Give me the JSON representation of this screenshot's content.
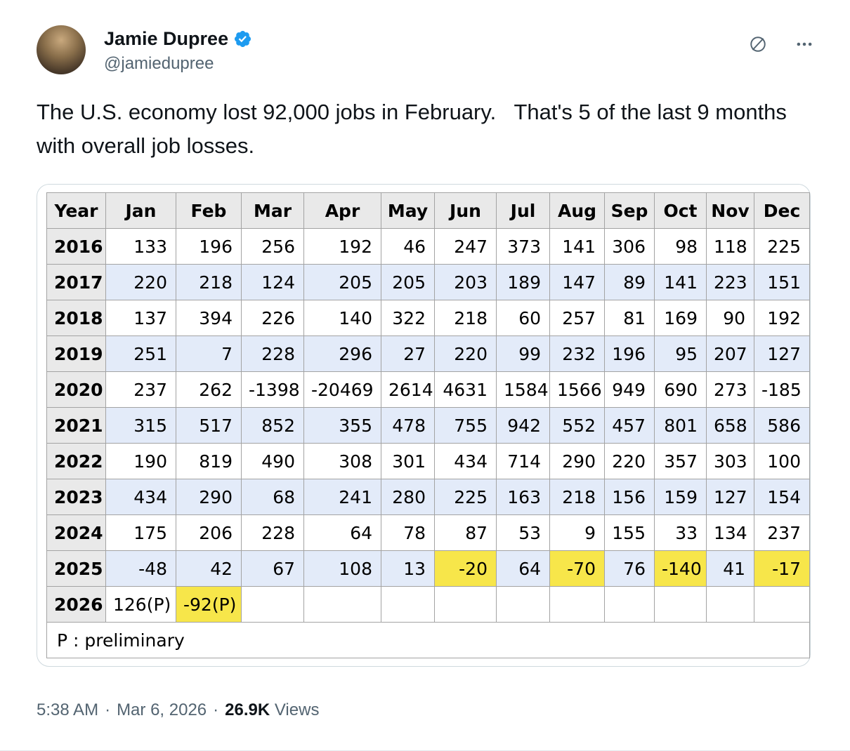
{
  "tweet": {
    "author": {
      "name": "Jamie Dupree",
      "handle": "@jamiedupree"
    },
    "body": "The U.S. economy lost 92,000 jobs in February.   That's 5 of the last 9 months with overall job losses.",
    "meta": {
      "time": "5:38 AM",
      "dot": "·",
      "date": "Mar 6, 2026",
      "views_count": "26.9K",
      "views_label": "Views"
    },
    "accent_color": "#1d9bf0",
    "muted_color": "#536471"
  },
  "table": {
    "headers": [
      "Year",
      "Jan",
      "Feb",
      "Mar",
      "Apr",
      "May",
      "Jun",
      "Jul",
      "Aug",
      "Sep",
      "Oct",
      "Nov",
      "Dec"
    ],
    "rows": [
      {
        "year": "2016",
        "values": [
          "133",
          "196",
          "256",
          "192",
          "46",
          "247",
          "373",
          "141",
          "306",
          "98",
          "118",
          "225"
        ],
        "highlights": []
      },
      {
        "year": "2017",
        "values": [
          "220",
          "218",
          "124",
          "205",
          "205",
          "203",
          "189",
          "147",
          "89",
          "141",
          "223",
          "151"
        ],
        "highlights": []
      },
      {
        "year": "2018",
        "values": [
          "137",
          "394",
          "226",
          "140",
          "322",
          "218",
          "60",
          "257",
          "81",
          "169",
          "90",
          "192"
        ],
        "highlights": []
      },
      {
        "year": "2019",
        "values": [
          "251",
          "7",
          "228",
          "296",
          "27",
          "220",
          "99",
          "232",
          "196",
          "95",
          "207",
          "127"
        ],
        "highlights": []
      },
      {
        "year": "2020",
        "values": [
          "237",
          "262",
          "-1398",
          "-20469",
          "2614",
          "4631",
          "1584",
          "1566",
          "949",
          "690",
          "273",
          "-185"
        ],
        "highlights": []
      },
      {
        "year": "2021",
        "values": [
          "315",
          "517",
          "852",
          "355",
          "478",
          "755",
          "942",
          "552",
          "457",
          "801",
          "658",
          "586"
        ],
        "highlights": []
      },
      {
        "year": "2022",
        "values": [
          "190",
          "819",
          "490",
          "308",
          "301",
          "434",
          "714",
          "290",
          "220",
          "357",
          "303",
          "100"
        ],
        "highlights": []
      },
      {
        "year": "2023",
        "values": [
          "434",
          "290",
          "68",
          "241",
          "280",
          "225",
          "163",
          "218",
          "156",
          "159",
          "127",
          "154"
        ],
        "highlights": []
      },
      {
        "year": "2024",
        "values": [
          "175",
          "206",
          "228",
          "64",
          "78",
          "87",
          "53",
          "9",
          "155",
          "33",
          "134",
          "237"
        ],
        "highlights": []
      },
      {
        "year": "2025",
        "values": [
          "-48",
          "42",
          "67",
          "108",
          "13",
          "-20",
          "64",
          "-70",
          "76",
          "-140",
          "41",
          "-17"
        ],
        "highlights": [
          5,
          7,
          9,
          11
        ]
      },
      {
        "year": "2026",
        "values": [
          "126(P)",
          "-92(P)",
          "",
          "",
          "",
          "",
          "",
          "",
          "",
          "",
          "",
          ""
        ],
        "highlights": [
          1
        ]
      }
    ],
    "footnote": "P : preliminary",
    "colors": {
      "highlight": "#f7e64a",
      "stripe": "#e3ebf9",
      "header_bg": "#e9e9e9",
      "grid": "#a3a3a3"
    }
  }
}
